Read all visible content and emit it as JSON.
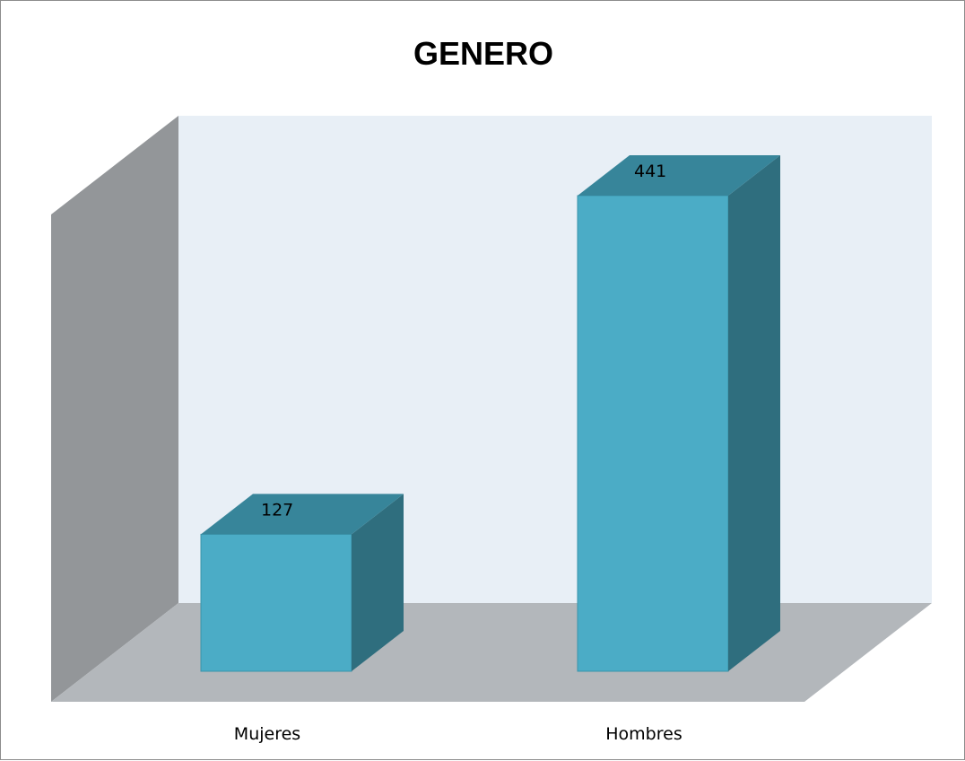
{
  "chart_data": {
    "type": "bar",
    "title": "GENERO",
    "xlabel": "",
    "ylabel": "",
    "categories": [
      "Mujeres",
      "Hombres"
    ],
    "values": [
      127,
      441
    ],
    "data_labels": [
      "127",
      "441"
    ],
    "ylim": [
      0,
      450
    ],
    "grid": false,
    "legend": "none",
    "three_d": true,
    "colors": {
      "bar_front": "#4bacc6",
      "bar_top": "#37859a",
      "bar_side": "#2f6e7e",
      "back_wall": "#e8eff6",
      "side_wall": "#939699",
      "floor": "#b3b7bb"
    }
  }
}
